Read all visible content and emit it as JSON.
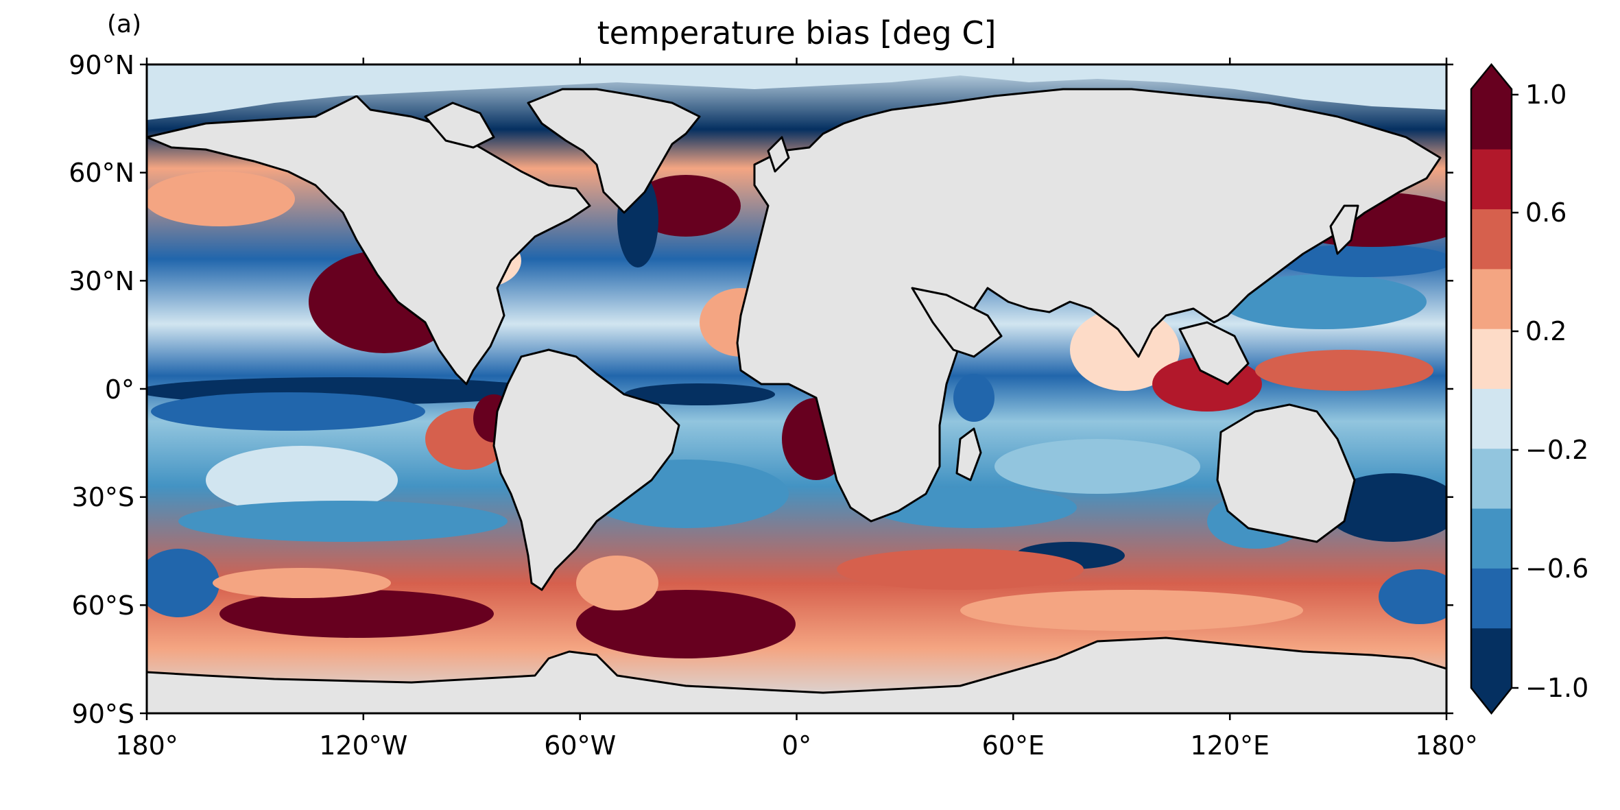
{
  "panel_label": "(a)",
  "title": "temperature bias [deg C]",
  "y_ticks": [
    "90°N",
    "60°N",
    "30°N",
    "0°",
    "30°S",
    "60°S",
    "90°S"
  ],
  "x_ticks": [
    "180°",
    "120°W",
    "60°W",
    "0°",
    "60°E",
    "120°E",
    "180°"
  ],
  "colorbar": {
    "tick_labels": [
      "1.0",
      "0.6",
      "0.2",
      "−0.2",
      "−0.6",
      "−1.0"
    ],
    "levels": [
      -1.0,
      -0.8,
      -0.6,
      -0.4,
      -0.2,
      0.0,
      0.2,
      0.4,
      0.6,
      0.8,
      1.0
    ],
    "colors": [
      "#053061",
      "#2166ac",
      "#4393c3",
      "#92c5de",
      "#d1e5f0",
      "#fddbc7",
      "#f4a582",
      "#d6604d",
      "#b2182b",
      "#67001f"
    ],
    "extend": "both"
  },
  "colors": {
    "land": "#e4e4e4",
    "coast": "#000000"
  }
}
